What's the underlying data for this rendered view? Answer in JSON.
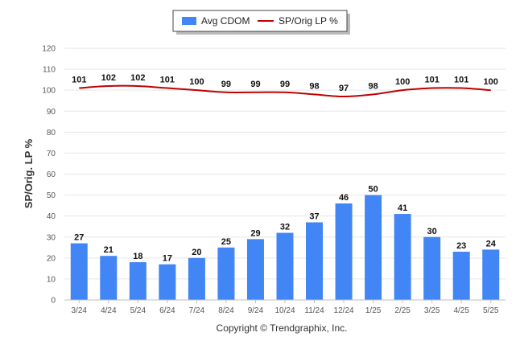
{
  "chart_data": {
    "type": "bar",
    "categories": [
      "3/24",
      "4/24",
      "5/24",
      "6/24",
      "7/24",
      "8/24",
      "9/24",
      "10/24",
      "11/24",
      "12/24",
      "1/25",
      "2/25",
      "3/25",
      "4/25",
      "5/25"
    ],
    "series": [
      {
        "name": "Avg CDOM",
        "type": "bar",
        "color": "#4285f4",
        "values": [
          27,
          21,
          18,
          17,
          20,
          25,
          29,
          32,
          37,
          46,
          50,
          41,
          30,
          23,
          24
        ]
      },
      {
        "name": "SP/Orig LP %",
        "type": "line",
        "color": "#c00000",
        "values": [
          101,
          102,
          102,
          101,
          100,
          99,
          99,
          99,
          98,
          97,
          98,
          100,
          101,
          101,
          100
        ]
      }
    ],
    "ylabel": "SP/Orig. LP %",
    "xlabel": "",
    "ylim": [
      0,
      120
    ],
    "yticks": [
      0,
      10,
      20,
      30,
      40,
      50,
      60,
      70,
      80,
      90,
      100,
      110,
      120
    ],
    "grid": true,
    "legend_position": "top-center"
  },
  "footer": {
    "copyright": "Copyright © Trendgraphix, Inc."
  }
}
